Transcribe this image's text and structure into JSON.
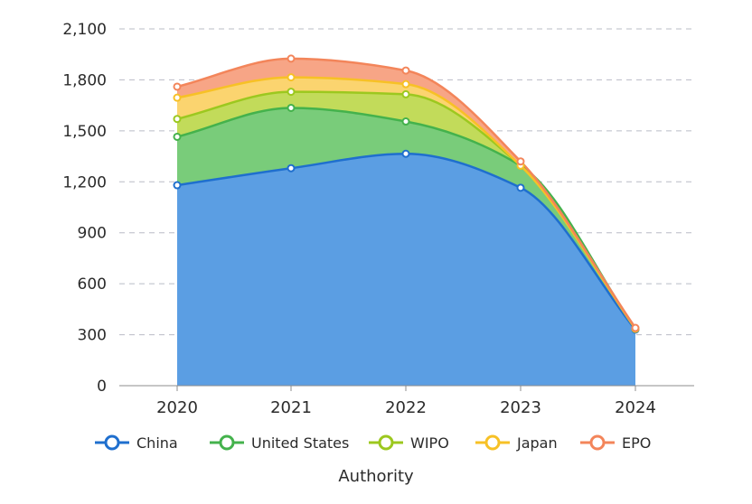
{
  "chart_data": {
    "type": "area",
    "stacked": true,
    "categories": [
      "2020",
      "2021",
      "2022",
      "2023",
      "2024"
    ],
    "series": [
      {
        "name": "China",
        "values": [
          1180,
          1280,
          1365,
          1165,
          330
        ],
        "color": "#1f6fce",
        "fill": "#5b9ee3"
      },
      {
        "name": "United States",
        "values": [
          285,
          355,
          190,
          130,
          5
        ],
        "color": "#44b24c",
        "fill": "#79cc7a"
      },
      {
        "name": "WIPO",
        "values": [
          105,
          95,
          160,
          0,
          0
        ],
        "color": "#9cc81f",
        "fill": "#c2db5a"
      },
      {
        "name": "Japan",
        "values": [
          125,
          85,
          60,
          0,
          0
        ],
        "color": "#f7c126",
        "fill": "#fbd46f"
      },
      {
        "name": "EPO",
        "values": [
          65,
          110,
          80,
          25,
          5
        ],
        "color": "#f3855a",
        "fill": "#f7a586"
      }
    ],
    "y_ticks": [
      "0",
      "300",
      "600",
      "900",
      "1,200",
      "1,500",
      "1,800",
      "2,100"
    ],
    "ylim": [
      0,
      2100
    ],
    "xlabel": "Authority",
    "ylabel": "",
    "title": "",
    "grid": true,
    "legend_position": "bottom"
  }
}
